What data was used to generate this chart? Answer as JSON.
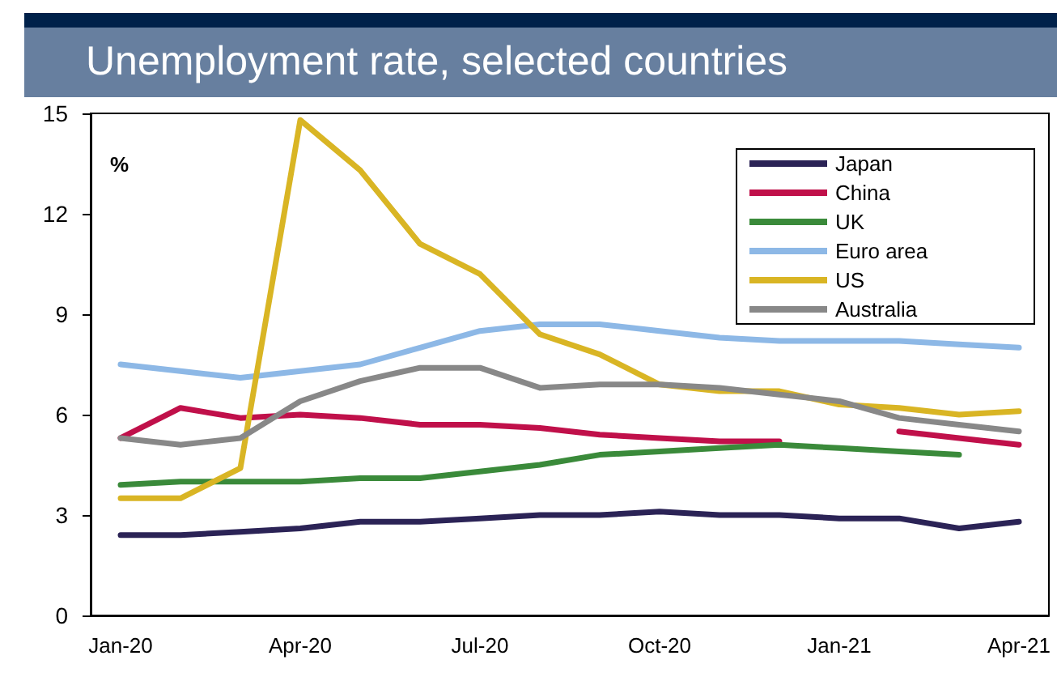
{
  "chart_data": {
    "type": "line",
    "title": "Unemployment rate, selected countries",
    "ylabel": "%",
    "categories": [
      "Jan-20",
      null,
      null,
      "Apr-20",
      null,
      null,
      "Jul-20",
      null,
      null,
      "Oct-20",
      null,
      null,
      "Jan-21",
      null,
      null,
      "Apr-21"
    ],
    "series": [
      {
        "name": "Japan",
        "color": "#2b2356",
        "values": [
          2.4,
          2.4,
          2.5,
          2.6,
          2.8,
          2.8,
          2.9,
          3.0,
          3.0,
          3.1,
          3.0,
          3.0,
          2.9,
          2.9,
          2.6,
          2.8
        ]
      },
      {
        "name": "China",
        "color": "#c0104a",
        "values": [
          5.3,
          6.2,
          5.9,
          6.0,
          5.9,
          5.7,
          5.7,
          5.6,
          5.4,
          5.3,
          5.2,
          5.2,
          null,
          5.5,
          5.3,
          5.1
        ]
      },
      {
        "name": "UK",
        "color": "#3a8a3a",
        "values": [
          3.9,
          4.0,
          4.0,
          4.0,
          4.1,
          4.1,
          4.3,
          4.5,
          4.8,
          4.9,
          5.0,
          5.1,
          5.0,
          4.9,
          4.8,
          null
        ]
      },
      {
        "name": "Euro area",
        "color": "#8db8e6",
        "values": [
          7.5,
          7.3,
          7.1,
          7.3,
          7.5,
          8.0,
          8.5,
          8.7,
          8.7,
          8.5,
          8.3,
          8.2,
          8.2,
          8.2,
          8.1,
          8.0
        ]
      },
      {
        "name": "US",
        "color": "#d9b524",
        "values": [
          3.5,
          3.5,
          4.4,
          14.8,
          13.3,
          11.1,
          10.2,
          8.4,
          7.8,
          6.9,
          6.7,
          6.7,
          6.3,
          6.2,
          6.0,
          6.1
        ]
      },
      {
        "name": "Australia",
        "color": "#888888",
        "values": [
          5.3,
          5.1,
          5.3,
          6.4,
          7.0,
          7.4,
          7.4,
          6.8,
          6.9,
          6.9,
          6.8,
          6.6,
          6.4,
          5.9,
          5.7,
          5.5
        ]
      }
    ],
    "ylim": [
      0,
      15
    ],
    "yticks": [
      0,
      3,
      6,
      9,
      12,
      15
    ],
    "grid": false,
    "legend": "top right",
    "marker": "none",
    "line_style": "solid"
  }
}
